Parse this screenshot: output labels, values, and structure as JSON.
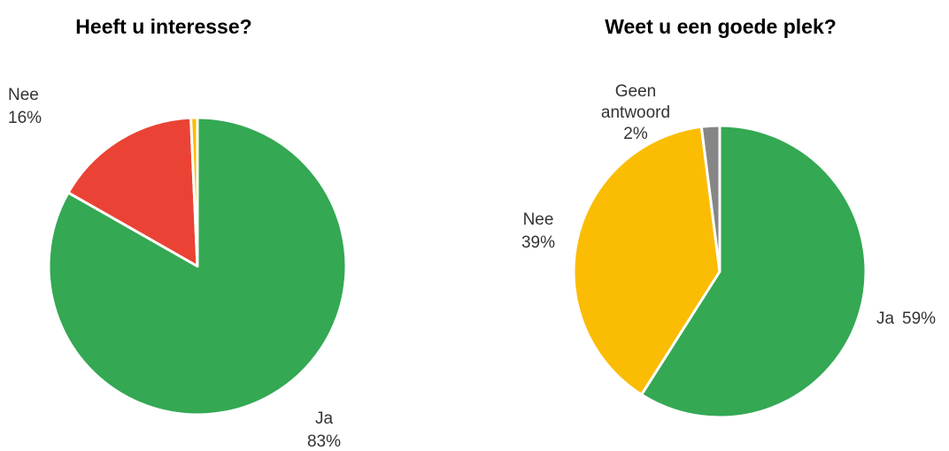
{
  "chart_data": [
    {
      "type": "pie",
      "title": "Heeft u interesse?",
      "slices": [
        {
          "label": "Ja",
          "value": 83,
          "display": "83%",
          "color": "#34a853"
        },
        {
          "label": "Nee",
          "value": 16,
          "display": "16%",
          "color": "#ea4335"
        },
        {
          "label": "",
          "value": 0.7,
          "display": "",
          "color": "#fbbc04"
        }
      ]
    },
    {
      "type": "pie",
      "title": "Weet u een goede plek?",
      "slices": [
        {
          "label": "Ja",
          "value": 59,
          "display": "59%",
          "color": "#34a853"
        },
        {
          "label": "Nee",
          "value": 39,
          "display": "39%",
          "color": "#fbbc04"
        },
        {
          "label": "Geen antwoord",
          "value": 2,
          "display": "2%",
          "color": "#868686"
        }
      ]
    }
  ]
}
